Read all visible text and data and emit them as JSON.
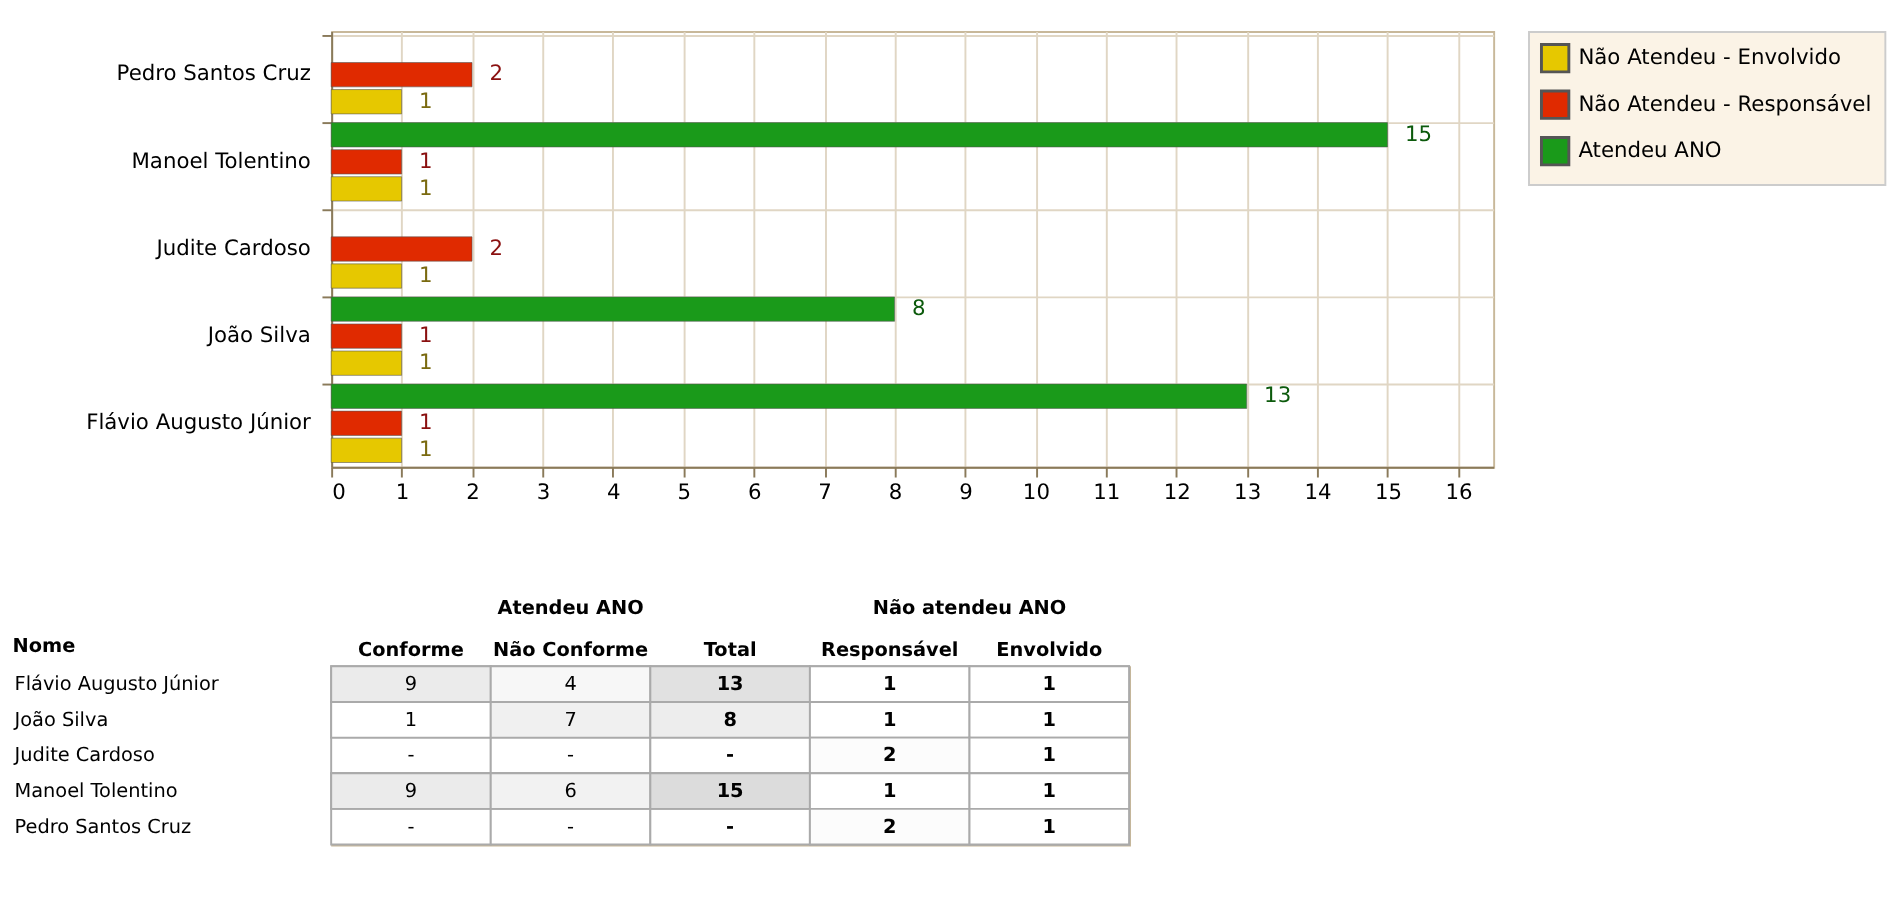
{
  "chart_data": [
    {
      "type": "bar",
      "orientation": "horizontal",
      "categories": [
        "Pedro Santos Cruz",
        "Manoel Tolentino",
        "Judite Cardoso",
        "João Silva",
        "Flávio Augusto Júnior"
      ],
      "series": [
        {
          "name": "Não Atendeu - Envolvido",
          "color": "#e6c800",
          "values": [
            1,
            1,
            1,
            1,
            1
          ]
        },
        {
          "name": "Não Atendeu - Responsável",
          "color": "#e02a00",
          "values": [
            2,
            1,
            2,
            1,
            1
          ]
        },
        {
          "name": "Atendeu ANO",
          "color": "#1a9a1a",
          "values": [
            null,
            15,
            null,
            8,
            13
          ]
        }
      ],
      "xlim": [
        0,
        16.5
      ],
      "xticks": [
        0,
        1,
        2,
        3,
        4,
        5,
        6,
        7,
        8,
        9,
        10,
        11,
        12,
        13,
        14,
        15,
        16
      ],
      "grid": true,
      "legend": "top right",
      "data_labels": true
    },
    {
      "type": "heatmap",
      "ylabel": "Nome",
      "annotations": [
        "Atendeu ANO",
        "Não atendeu ANO"
      ],
      "categories": [
        "Conforme",
        "Não Conforme",
        "Total",
        "Responsável",
        "Envolvido"
      ],
      "y_categories": [
        "Flávio Augusto Júnior",
        "João Silva",
        "Judite Cardoso",
        "Manoel Tolentino",
        "Pedro Santos Cruz"
      ],
      "cells": [
        [
          9,
          4,
          13,
          1,
          1
        ],
        [
          1,
          7,
          8,
          1,
          1
        ],
        [
          null,
          null,
          null,
          2,
          1
        ],
        [
          9,
          6,
          15,
          1,
          1
        ],
        [
          null,
          null,
          null,
          2,
          1
        ]
      ],
      "cell_labels": [
        [
          "9",
          "4",
          "13",
          "1",
          "1"
        ],
        [
          "1",
          "7",
          "8",
          "1",
          "1"
        ],
        [
          "-",
          "-",
          "-",
          "2",
          "1"
        ],
        [
          "9",
          "6",
          "15",
          "1",
          "1"
        ],
        [
          "-",
          "-",
          "-",
          "2",
          "1"
        ]
      ]
    }
  ]
}
